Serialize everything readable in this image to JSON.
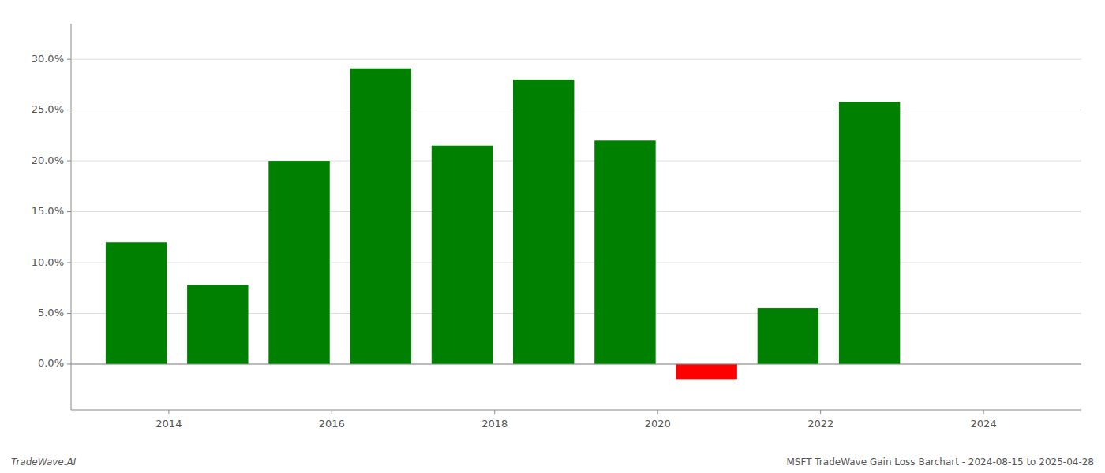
{
  "chart_data": {
    "type": "bar",
    "title": "MSFT TradeWave Gain Loss Barchart - 2024-08-15 to 2025-04-28",
    "annotations": [
      "TradeWave.AI"
    ],
    "x": [
      2013.6,
      2014.6,
      2015.6,
      2016.6,
      2017.6,
      2018.6,
      2019.6,
      2020.6,
      2021.6,
      2022.6
    ],
    "values": [
      0.12,
      0.078,
      0.2,
      0.291,
      0.215,
      0.28,
      0.22,
      -0.015,
      0.055,
      0.258
    ],
    "colors": [
      "#008000",
      "#008000",
      "#008000",
      "#008000",
      "#008000",
      "#008000",
      "#008000",
      "#ff0000",
      "#008000",
      "#008000"
    ],
    "xlim": [
      2012.8,
      2025.2
    ],
    "xticks": [
      2014,
      2016,
      2018,
      2020,
      2022,
      2024
    ],
    "ylim": [
      -0.045,
      0.335
    ],
    "yticks": [
      {
        "value": 0.0,
        "label": "0.0%"
      },
      {
        "value": 0.05,
        "label": "5.0%"
      },
      {
        "value": 0.1,
        "label": "10.0%"
      },
      {
        "value": 0.15,
        "label": "15.0%"
      },
      {
        "value": 0.2,
        "label": "20.0%"
      },
      {
        "value": 0.25,
        "label": "25.0%"
      },
      {
        "value": 0.3,
        "label": "30.0%"
      }
    ],
    "grid": true
  }
}
